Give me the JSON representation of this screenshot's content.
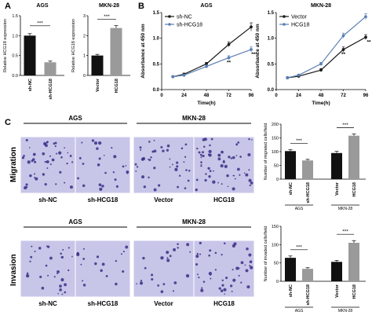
{
  "panels": {
    "a": "A",
    "b": "B",
    "c": "C"
  },
  "row_labels": {
    "migration": "Migration",
    "invasion": "Invasion"
  },
  "image_groups": {
    "left": "AGS",
    "right": "MKN-28"
  },
  "image_captions": [
    "sh-NC",
    "sh-HCG18",
    "Vector",
    "HCG18"
  ],
  "colors": {
    "black": "#111111",
    "gray": "#9a9a9a",
    "darkline": "#1a1a1a",
    "blueline": "#5b7fb4",
    "stain": "#c8c6e8",
    "cell": "#3a2f86"
  },
  "chart_data": [
    {
      "id": "a-ags",
      "type": "bar",
      "title": "AGS",
      "categories": [
        "sh-NC",
        "sh-HCG18"
      ],
      "values": [
        1.0,
        0.33
      ],
      "errors": [
        0.05,
        0.03
      ],
      "colors": [
        "#111111",
        "#9a9a9a"
      ],
      "ylabel": "Relative HCG18 expression",
      "ylim": [
        0,
        1.5
      ],
      "yticks": [
        0.0,
        0.5,
        1.0,
        1.5
      ],
      "significance": "***"
    },
    {
      "id": "a-mkn",
      "type": "bar",
      "title": "MKN-28",
      "categories": [
        "Vector",
        "HCG18"
      ],
      "values": [
        1.0,
        2.38
      ],
      "errors": [
        0.06,
        0.12
      ],
      "colors": [
        "#111111",
        "#9a9a9a"
      ],
      "ylabel": "Relative HCG18 expression",
      "ylim": [
        0,
        3
      ],
      "yticks": [
        0,
        1,
        2,
        3
      ],
      "significance": "***"
    },
    {
      "id": "b-ags",
      "type": "line",
      "title": "AGS",
      "x": [
        12,
        24,
        48,
        72,
        96
      ],
      "xticks": [
        0,
        24,
        48,
        72,
        96
      ],
      "xlabel": "Time(h)",
      "ylabel": "Absorbance at 450 nm",
      "ylim": [
        0,
        1.5
      ],
      "yticks": [
        0.0,
        0.5,
        1.0,
        1.5
      ],
      "series": [
        {
          "name": "sh-NC",
          "values": [
            0.25,
            0.3,
            0.5,
            0.88,
            1.22
          ],
          "errors": [
            0.02,
            0.02,
            0.03,
            0.05,
            0.08
          ],
          "color": "#1a1a1a"
        },
        {
          "name": "sh-HCG18",
          "values": [
            0.25,
            0.28,
            0.45,
            0.62,
            0.78
          ],
          "errors": [
            0.02,
            0.02,
            0.03,
            0.04,
            0.05
          ],
          "color": "#5b7fb4"
        }
      ],
      "annotations": [
        {
          "x": 72,
          "text": "**"
        },
        {
          "x": 96,
          "text": "***"
        }
      ],
      "legend": "top-left"
    },
    {
      "id": "b-mkn",
      "type": "line",
      "title": "MKN-28",
      "x": [
        12,
        24,
        48,
        72,
        96
      ],
      "xticks": [
        0,
        24,
        48,
        72,
        96
      ],
      "xlabel": "Time(h)",
      "ylabel": "Absorbance at 450 nm",
      "ylim": [
        0,
        1.5
      ],
      "yticks": [
        0.0,
        0.5,
        1.0,
        1.5
      ],
      "series": [
        {
          "name": "Vector",
          "values": [
            0.23,
            0.26,
            0.38,
            0.78,
            1.02
          ],
          "errors": [
            0.02,
            0.02,
            0.03,
            0.05,
            0.05
          ],
          "color": "#1a1a1a"
        },
        {
          "name": "HCG18",
          "values": [
            0.23,
            0.28,
            0.5,
            1.05,
            1.42
          ],
          "errors": [
            0.02,
            0.02,
            0.03,
            0.05,
            0.06
          ],
          "color": "#5b7fb4"
        }
      ],
      "annotations": [
        {
          "x": 72,
          "text": "**"
        },
        {
          "x": 96,
          "text": "**"
        }
      ],
      "legend": "top-left"
    },
    {
      "id": "c-mig",
      "type": "bar",
      "title": "",
      "categories": [
        "sh-NC",
        "sh-HCG18",
        "Vector",
        "HCG18"
      ],
      "groups": [
        {
          "label": "AGS"
        },
        {
          "label": "MKN-28"
        }
      ],
      "values": [
        102,
        68,
        95,
        158
      ],
      "errors": [
        5,
        4,
        6,
        6
      ],
      "colors": [
        "#111111",
        "#9a9a9a",
        "#111111",
        "#9a9a9a"
      ],
      "ylabel": "Number of migrated cells/field",
      "ylim": [
        0,
        200
      ],
      "yticks": [
        0,
        50,
        100,
        150,
        200
      ],
      "significance": [
        "***",
        "***"
      ]
    },
    {
      "id": "c-inv",
      "type": "bar",
      "title": "",
      "categories": [
        "sh-NC",
        "sh-HCG18",
        "Vector",
        "HCG18"
      ],
      "groups": [
        {
          "label": "AGS"
        },
        {
          "label": "MKN-28"
        }
      ],
      "values": [
        64,
        34,
        53,
        105
      ],
      "errors": [
        5,
        3,
        4,
        6
      ],
      "colors": [
        "#111111",
        "#9a9a9a",
        "#111111",
        "#9a9a9a"
      ],
      "ylabel": "Number of invaded cells/field",
      "ylim": [
        0,
        150
      ],
      "yticks": [
        0,
        50,
        100,
        150
      ],
      "significance": [
        "***",
        "***"
      ]
    }
  ]
}
